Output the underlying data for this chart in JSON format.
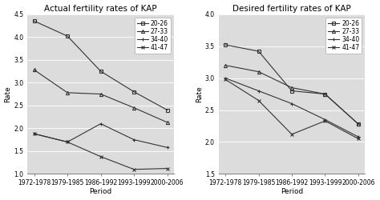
{
  "periods": [
    "1972-1978",
    "1979-1985",
    "1986-1992",
    "1993-1999",
    "2000-2006"
  ],
  "left_title": "Actual fertility rates of KAP",
  "right_title": "Desired fertility rates of KAP",
  "xlabel": "Period",
  "ylabel": "Rate",
  "legend_labels": [
    "20-26",
    "27-33",
    "34-40",
    "41-47"
  ],
  "left_data": {
    "20-26": [
      4.35,
      4.02,
      3.25,
      2.8,
      2.4
    ],
    "27-33": [
      3.28,
      2.78,
      2.75,
      2.45,
      2.13
    ],
    "34-40": [
      1.88,
      1.7,
      2.1,
      1.75,
      1.58
    ],
    "41-47": [
      1.88,
      1.7,
      1.38,
      1.1,
      1.12
    ]
  },
  "right_data": {
    "20-26": [
      3.52,
      3.42,
      2.8,
      2.75,
      2.28
    ],
    "27-33": [
      3.2,
      3.1,
      2.85,
      2.75,
      2.28
    ],
    "34-40": [
      3.0,
      2.8,
      2.6,
      2.35,
      2.08
    ],
    "41-47": [
      2.98,
      2.65,
      2.12,
      2.33,
      2.05
    ]
  },
  "left_ylim": [
    1.0,
    4.5
  ],
  "left_yticks": [
    1.0,
    1.5,
    2.0,
    2.5,
    3.0,
    3.5,
    4.0,
    4.5
  ],
  "right_ylim": [
    1.5,
    4.0
  ],
  "right_yticks": [
    1.5,
    2.0,
    2.5,
    3.0,
    3.5,
    4.0
  ],
  "markers": [
    "s",
    "^",
    "+",
    "x"
  ],
  "line_color": "#333333",
  "panel_bg": "#dcdcdc",
  "fig_bg": "#ffffff",
  "legend_fontsize": 5.5,
  "tick_fontsize": 5.5,
  "label_fontsize": 6.5,
  "title_fontsize": 7.5
}
